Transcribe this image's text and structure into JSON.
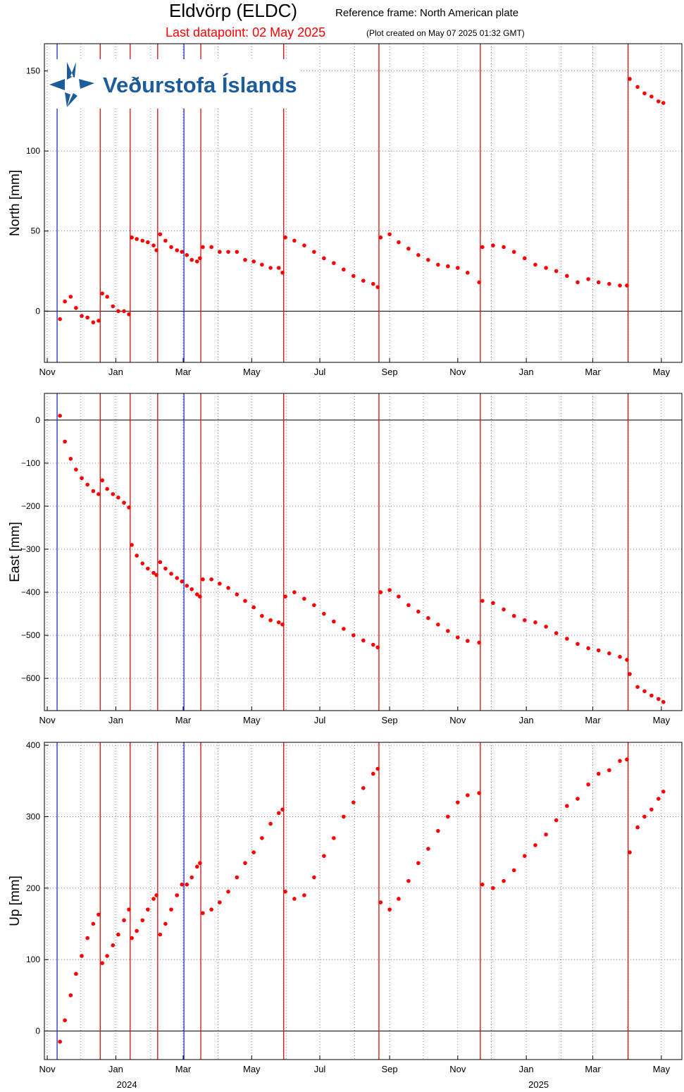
{
  "header": {
    "title": "Eldvörp (ELDC)",
    "reference": "Reference frame: North American plate",
    "last_datapoint": "Last datapoint: 02 May 2025",
    "created": "(Plot created on May 07 2025 01:32 GMT)",
    "logo": "Veðurstofa Íslands"
  },
  "event_lines": [
    {
      "x": 2023.857,
      "color": "#2030c0"
    },
    {
      "x": 2023.962,
      "color": "#d01010"
    },
    {
      "x": 2024.035,
      "color": "#d01010"
    },
    {
      "x": 2024.102,
      "color": "#d01010"
    },
    {
      "x": 2024.166,
      "color": "#2030c0"
    },
    {
      "x": 2024.207,
      "color": "#d01010"
    },
    {
      "x": 2024.409,
      "color": "#d01010"
    },
    {
      "x": 2024.641,
      "color": "#d01010"
    },
    {
      "x": 2024.888,
      "color": "#d01010"
    },
    {
      "x": 2025.248,
      "color": "#d01010"
    }
  ],
  "chart_data": [
    {
      "type": "scatter",
      "ylabel": "North [mm]",
      "color": "#ff0000",
      "grid": true,
      "zero_line": true,
      "xlim": [
        2023.826,
        2025.379
      ],
      "xticks": [
        {
          "value": 2023.833,
          "label": "Nov"
        },
        {
          "value": 2024.0,
          "label": "Jan"
        },
        {
          "value": 2024.164,
          "label": "Mar"
        },
        {
          "value": 2024.331,
          "label": "May"
        },
        {
          "value": 2024.497,
          "label": "Jul"
        },
        {
          "value": 2024.667,
          "label": "Sep"
        },
        {
          "value": 2024.833,
          "label": "Nov"
        },
        {
          "value": 2025.0,
          "label": "Jan"
        },
        {
          "value": 2025.162,
          "label": "Mar"
        },
        {
          "value": 2025.329,
          "label": "May"
        }
      ],
      "xminor": [
        2023.915,
        2024.085,
        2024.249,
        2024.415,
        2024.582,
        2024.749,
        2024.915,
        2025.085,
        2025.247
      ],
      "ylim": [
        -32,
        167
      ],
      "yticks": [
        0,
        50,
        100,
        150
      ],
      "x": [
        2023.864,
        2023.876,
        2023.89,
        2023.903,
        2023.917,
        2023.931,
        2023.945,
        2023.958,
        2023.967,
        2023.979,
        2023.993,
        2024.006,
        2024.02,
        2024.032,
        2024.039,
        2024.051,
        2024.065,
        2024.078,
        2024.092,
        2024.099,
        2024.108,
        2024.121,
        2024.135,
        2024.149,
        2024.161,
        2024.173,
        2024.185,
        2024.198,
        2024.205,
        2024.212,
        2024.233,
        2024.253,
        2024.274,
        2024.295,
        2024.315,
        2024.336,
        2024.356,
        2024.377,
        2024.397,
        2024.406,
        2024.413,
        2024.435,
        2024.459,
        2024.483,
        2024.507,
        2024.531,
        2024.555,
        2024.579,
        2024.603,
        2024.627,
        2024.638,
        2024.645,
        2024.667,
        2024.689,
        2024.713,
        2024.737,
        2024.761,
        2024.785,
        2024.809,
        2024.833,
        2024.857,
        2024.885,
        2024.893,
        2024.919,
        2024.945,
        2024.97,
        2024.996,
        2025.022,
        2025.048,
        2025.073,
        2025.099,
        2025.125,
        2025.151,
        2025.176,
        2025.202,
        2025.228,
        2025.245,
        2025.252,
        2025.271,
        2025.288,
        2025.305,
        2025.322,
        2025.334
      ],
      "values": [
        -5,
        6,
        9,
        2,
        -3,
        -4,
        -7,
        -6,
        11,
        9,
        3,
        0,
        0,
        -2,
        46,
        45,
        44,
        43,
        41,
        38,
        48,
        44,
        40,
        38,
        37,
        35,
        32,
        31,
        33,
        40,
        40,
        37,
        37,
        37,
        32,
        31,
        29,
        27,
        27,
        24,
        46,
        44,
        41,
        37,
        33,
        30,
        26,
        22,
        19,
        17,
        15,
        46,
        48,
        43,
        39,
        35,
        32,
        29,
        28,
        27,
        24,
        18,
        40,
        41,
        40,
        37,
        33,
        29,
        27,
        25,
        22,
        18,
        20,
        18,
        17,
        16,
        16,
        145,
        140,
        136,
        134,
        131,
        130
      ]
    },
    {
      "type": "scatter",
      "ylabel": "East [mm]",
      "color": "#ff0000",
      "grid": true,
      "zero_line": true,
      "xlim": [
        2023.826,
        2025.379
      ],
      "xticks": [
        {
          "value": 2023.833,
          "label": "Nov"
        },
        {
          "value": 2024.0,
          "label": "Jan"
        },
        {
          "value": 2024.164,
          "label": "Mar"
        },
        {
          "value": 2024.331,
          "label": "May"
        },
        {
          "value": 2024.497,
          "label": "Jul"
        },
        {
          "value": 2024.667,
          "label": "Sep"
        },
        {
          "value": 2024.833,
          "label": "Nov"
        },
        {
          "value": 2025.0,
          "label": "Jan"
        },
        {
          "value": 2025.162,
          "label": "Mar"
        },
        {
          "value": 2025.329,
          "label": "May"
        }
      ],
      "xminor": [
        2023.915,
        2024.085,
        2024.249,
        2024.415,
        2024.582,
        2024.749,
        2024.915,
        2025.085,
        2025.247
      ],
      "ylim": [
        -675,
        62
      ],
      "yticks": [
        {
          "value": 0,
          "label": "0"
        },
        {
          "value": -100,
          "label": "−100"
        },
        {
          "value": -200,
          "label": "−200"
        },
        {
          "value": -300,
          "label": "−300"
        },
        {
          "value": -400,
          "label": "−400"
        },
        {
          "value": -500,
          "label": "−500"
        },
        {
          "value": -600,
          "label": "−600"
        }
      ],
      "x": [
        2023.864,
        2023.876,
        2023.89,
        2023.903,
        2023.917,
        2023.931,
        2023.945,
        2023.958,
        2023.967,
        2023.979,
        2023.993,
        2024.006,
        2024.02,
        2024.032,
        2024.039,
        2024.051,
        2024.065,
        2024.078,
        2024.092,
        2024.099,
        2024.108,
        2024.121,
        2024.135,
        2024.149,
        2024.161,
        2024.173,
        2024.185,
        2024.198,
        2024.205,
        2024.212,
        2024.233,
        2024.253,
        2024.274,
        2024.295,
        2024.315,
        2024.336,
        2024.356,
        2024.377,
        2024.397,
        2024.406,
        2024.413,
        2024.435,
        2024.459,
        2024.483,
        2024.507,
        2024.531,
        2024.555,
        2024.579,
        2024.603,
        2024.627,
        2024.638,
        2024.645,
        2024.667,
        2024.689,
        2024.713,
        2024.737,
        2024.761,
        2024.785,
        2024.809,
        2024.833,
        2024.857,
        2024.885,
        2024.893,
        2024.919,
        2024.945,
        2024.97,
        2024.996,
        2025.022,
        2025.048,
        2025.073,
        2025.099,
        2025.125,
        2025.151,
        2025.176,
        2025.202,
        2025.228,
        2025.245,
        2025.252,
        2025.271,
        2025.288,
        2025.305,
        2025.322,
        2025.334
      ],
      "values": [
        10,
        -50,
        -90,
        -115,
        -135,
        -150,
        -165,
        -172,
        -140,
        -160,
        -172,
        -180,
        -192,
        -203,
        -290,
        -315,
        -333,
        -345,
        -355,
        -360,
        -330,
        -345,
        -357,
        -367,
        -375,
        -385,
        -393,
        -405,
        -410,
        -370,
        -370,
        -380,
        -390,
        -405,
        -420,
        -435,
        -455,
        -465,
        -470,
        -475,
        -410,
        -400,
        -415,
        -430,
        -450,
        -468,
        -485,
        -500,
        -512,
        -522,
        -528,
        -400,
        -395,
        -410,
        -430,
        -445,
        -460,
        -475,
        -490,
        -505,
        -513,
        -517,
        -420,
        -425,
        -440,
        -455,
        -465,
        -470,
        -480,
        -495,
        -508,
        -520,
        -530,
        -535,
        -542,
        -550,
        -557,
        -590,
        -620,
        -630,
        -640,
        -648,
        -655
      ]
    },
    {
      "type": "scatter",
      "ylabel": "Up [mm]",
      "color": "#ff0000",
      "grid": true,
      "zero_line": true,
      "xlim": [
        2023.826,
        2025.379
      ],
      "xticks": [
        {
          "value": 2023.833,
          "label": "Nov"
        },
        {
          "value": 2024.0,
          "label": "Jan"
        },
        {
          "value": 2024.164,
          "label": "Mar"
        },
        {
          "value": 2024.331,
          "label": "May"
        },
        {
          "value": 2024.497,
          "label": "Jul"
        },
        {
          "value": 2024.667,
          "label": "Sep"
        },
        {
          "value": 2024.833,
          "label": "Nov"
        },
        {
          "value": 2025.0,
          "label": "Jan"
        },
        {
          "value": 2025.162,
          "label": "Mar"
        },
        {
          "value": 2025.329,
          "label": "May"
        }
      ],
      "xminor": [
        2023.915,
        2024.085,
        2024.249,
        2024.415,
        2024.582,
        2024.749,
        2024.915,
        2025.085,
        2025.247
      ],
      "year_labels": [
        {
          "value": 2024.027,
          "label": "2024"
        },
        {
          "value": 2025.03,
          "label": "2025"
        }
      ],
      "ylim": [
        -40,
        404
      ],
      "yticks": [
        0,
        100,
        200,
        300,
        400
      ],
      "x": [
        2023.864,
        2023.876,
        2023.89,
        2023.903,
        2023.917,
        2023.931,
        2023.945,
        2023.958,
        2023.967,
        2023.979,
        2023.993,
        2024.006,
        2024.02,
        2024.032,
        2024.039,
        2024.051,
        2024.065,
        2024.078,
        2024.092,
        2024.099,
        2024.108,
        2024.121,
        2024.135,
        2024.149,
        2024.161,
        2024.173,
        2024.185,
        2024.198,
        2024.205,
        2024.212,
        2024.233,
        2024.253,
        2024.274,
        2024.295,
        2024.315,
        2024.336,
        2024.356,
        2024.377,
        2024.397,
        2024.406,
        2024.413,
        2024.435,
        2024.459,
        2024.483,
        2024.507,
        2024.531,
        2024.555,
        2024.579,
        2024.603,
        2024.627,
        2024.638,
        2024.645,
        2024.667,
        2024.689,
        2024.713,
        2024.737,
        2024.761,
        2024.785,
        2024.809,
        2024.833,
        2024.857,
        2024.885,
        2024.893,
        2024.919,
        2024.945,
        2024.97,
        2024.996,
        2025.022,
        2025.048,
        2025.073,
        2025.099,
        2025.125,
        2025.151,
        2025.176,
        2025.202,
        2025.228,
        2025.245,
        2025.252,
        2025.271,
        2025.288,
        2025.305,
        2025.322,
        2025.334
      ],
      "values": [
        -15,
        15,
        50,
        80,
        105,
        130,
        150,
        163,
        95,
        105,
        120,
        135,
        155,
        170,
        130,
        140,
        155,
        170,
        185,
        190,
        135,
        150,
        170,
        190,
        205,
        205,
        215,
        230,
        235,
        165,
        170,
        180,
        195,
        215,
        235,
        250,
        270,
        290,
        305,
        310,
        195,
        185,
        190,
        215,
        245,
        270,
        300,
        320,
        340,
        360,
        367,
        180,
        170,
        185,
        210,
        235,
        255,
        280,
        300,
        320,
        330,
        333,
        205,
        200,
        210,
        225,
        245,
        260,
        275,
        295,
        315,
        325,
        345,
        360,
        365,
        378,
        380,
        250,
        285,
        300,
        310,
        325,
        335
      ]
    }
  ]
}
